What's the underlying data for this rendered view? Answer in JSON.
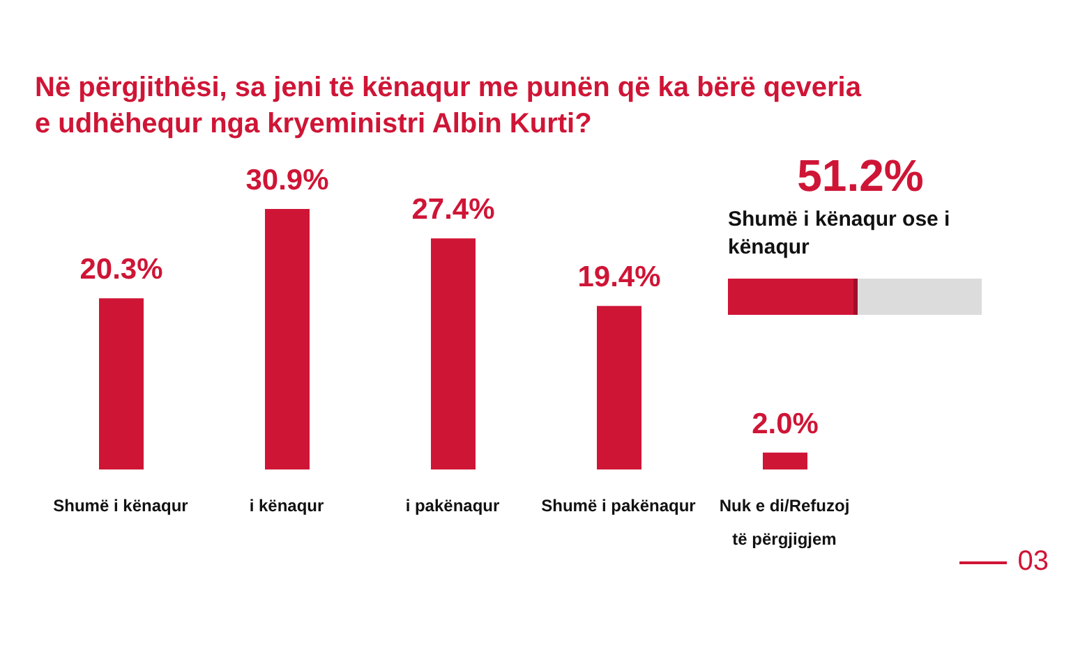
{
  "chart_data": [
    {
      "type": "bar",
      "title": "Në përgjithësi, sa jeni të kënaqur me punën që ka bërë qeveria e udhëhequr nga kryeministri Albin Kurti?",
      "categories": [
        "Shumë i kënaqur",
        "i kënaqur",
        "i pakënaqur",
        "Shumë i pakënaqur",
        "Nuk e di/Refuzoj të përgjigjem"
      ],
      "values": [
        20.3,
        30.9,
        27.4,
        19.4,
        2.0
      ],
      "value_labels": [
        "20.3%",
        "30.9%",
        "27.4%",
        "19.4%",
        "2.0%"
      ],
      "color": "#cf1536",
      "annotations": [
        "03"
      ]
    },
    {
      "type": "other",
      "subtitle": "Shumë i kënaqur ose i kënaqur",
      "values": [
        51.2
      ],
      "value_labels": [
        "51.2%"
      ],
      "color": "#cf1536"
    }
  ]
}
